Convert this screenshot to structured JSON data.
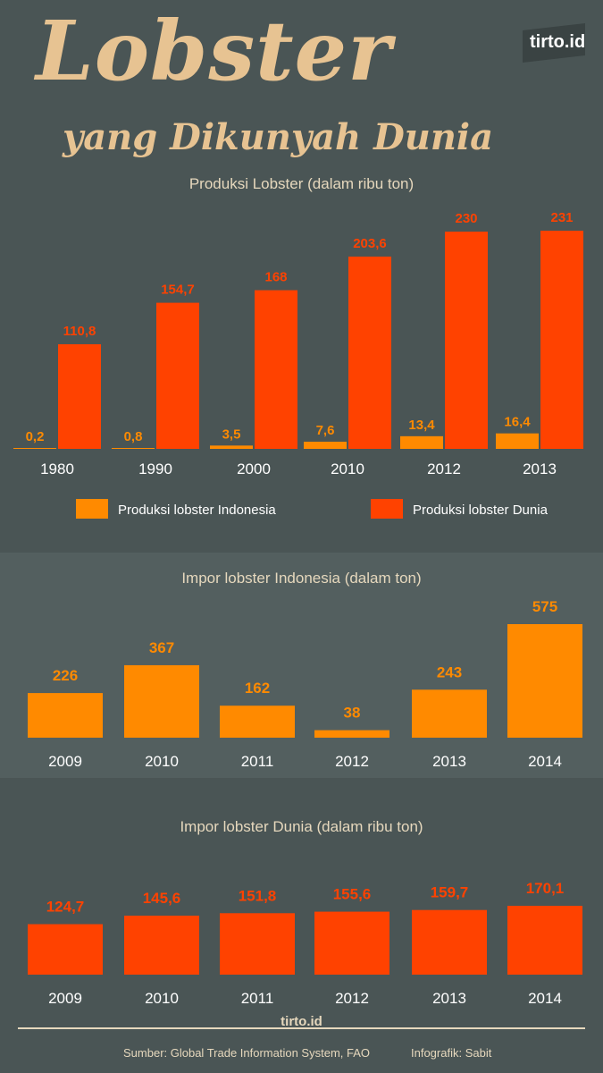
{
  "header": {
    "title": "Lobster",
    "subtitle": "yang Dikunyah Dunia",
    "logo": "tirto.id"
  },
  "colors": {
    "background": "#4a5555",
    "indonesia": "#ff8a00",
    "dunia": "#ff4200",
    "text": "#ffffff",
    "title": "#e7c392"
  },
  "chart_data": [
    {
      "type": "bar",
      "title": "Produksi Lobster (dalam ribu ton)",
      "categories": [
        "1980",
        "1990",
        "2000",
        "2010",
        "2012",
        "2013"
      ],
      "series": [
        {
          "name": "Produksi lobster Indonesia",
          "values": [
            0.2,
            0.8,
            3.5,
            7.6,
            13.4,
            16.4
          ],
          "labels": [
            "0,2",
            "0,8",
            "3,5",
            "7,6",
            "13,4",
            "16,4"
          ]
        },
        {
          "name": "Produksi lobster Dunia",
          "values": [
            110.8,
            154.7,
            168,
            203.6,
            230,
            231
          ],
          "labels": [
            "110,8",
            "154,7",
            "168",
            "203,6",
            "230",
            "231"
          ]
        }
      ],
      "ylim": [
        0,
        231
      ]
    },
    {
      "type": "bar",
      "title": "Impor lobster Indonesia (dalam ton)",
      "categories": [
        "2009",
        "2010",
        "2011",
        "2012",
        "2013",
        "2014"
      ],
      "values": [
        226,
        367,
        162,
        38,
        243,
        575
      ],
      "labels": [
        "226",
        "367",
        "162",
        "38",
        "243",
        "575"
      ],
      "ylim": [
        0,
        575
      ]
    },
    {
      "type": "bar",
      "title": "Impor lobster Dunia (dalam ribu ton)",
      "categories": [
        "2009",
        "2010",
        "2011",
        "2012",
        "2013",
        "2014"
      ],
      "values": [
        124.7,
        145.6,
        151.8,
        155.6,
        159.7,
        170.1
      ],
      "labels": [
        "124,7",
        "145,6",
        "151,8",
        "155,6",
        "159,7",
        "170,1"
      ],
      "ylim": [
        0,
        170.1
      ]
    }
  ],
  "footer": {
    "brand": "tirto.id",
    "source": "Sumber: Global Trade Information System, FAO",
    "credit": "Infografik: Sabit"
  }
}
